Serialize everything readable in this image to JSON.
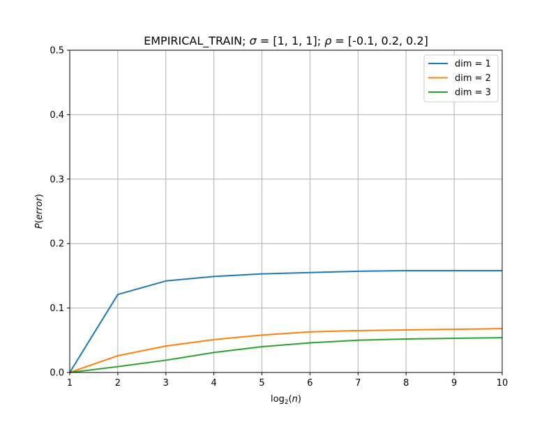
{
  "chart_data": {
    "type": "line",
    "title": {
      "prefix": "EMPIRICAL_TRAIN;  ",
      "sigma_symbol": "σ",
      "sigma_value": " = [1, 1, 1];  ",
      "rho_symbol": "ρ",
      "rho_value": " = [-0.1, 0.2, 0.2]"
    },
    "xlabel": {
      "prefix": "log",
      "subscript": "2",
      "paren_open": "(",
      "variable": "n",
      "paren_close": ")"
    },
    "ylabel": {
      "prefix": "P",
      "paren_open": "(",
      "variable": "error",
      "paren_close": ")"
    },
    "xlim": [
      1,
      10
    ],
    "ylim": [
      0,
      0.5
    ],
    "xticks": [
      1,
      2,
      3,
      4,
      5,
      6,
      7,
      8,
      9,
      10
    ],
    "xtick_labels": [
      "1",
      "2",
      "3",
      "4",
      "5",
      "6",
      "7",
      "8",
      "9",
      "10"
    ],
    "yticks": [
      0,
      0.1,
      0.2,
      0.3,
      0.4,
      0.5
    ],
    "ytick_labels": [
      "0.0",
      "0.1",
      "0.2",
      "0.3",
      "0.4",
      "0.5"
    ],
    "grid": true,
    "legend_position": "top-right",
    "x": [
      1,
      2,
      3,
      4,
      5,
      6,
      7,
      8,
      9,
      10
    ],
    "series": [
      {
        "name": "dim = 1",
        "color": "#1f77b4",
        "values": [
          0.0,
          0.121,
          0.142,
          0.149,
          0.153,
          0.155,
          0.157,
          0.158,
          0.158,
          0.158
        ]
      },
      {
        "name": "dim = 2",
        "color": "#ff7f0e",
        "values": [
          0.0,
          0.026,
          0.041,
          0.051,
          0.058,
          0.063,
          0.065,
          0.066,
          0.067,
          0.068
        ]
      },
      {
        "name": "dim = 3",
        "color": "#2ca02c",
        "values": [
          0.0,
          0.009,
          0.019,
          0.031,
          0.04,
          0.046,
          0.05,
          0.052,
          0.053,
          0.054
        ]
      }
    ]
  }
}
